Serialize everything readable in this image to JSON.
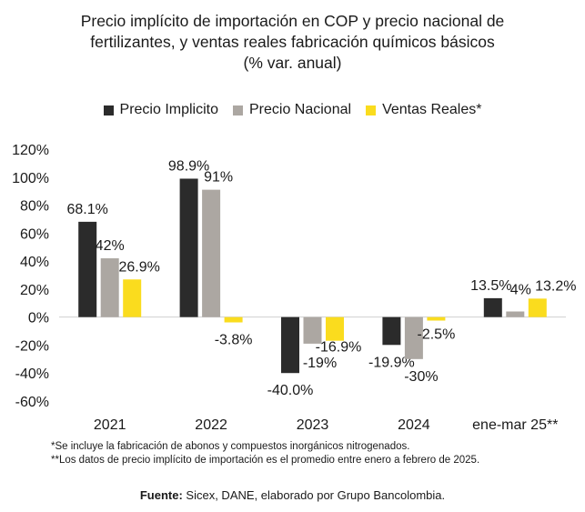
{
  "title": {
    "line1": "Precio implícito de importación en COP y precio nacional de",
    "line2": "fertilizantes, y ventas reales fabricación químicos básicos",
    "line3": "(% var. anual)"
  },
  "colors": {
    "precio_implicito": "#2b2b2b",
    "precio_nacional": "#aca7a2",
    "ventas_reales": "#fadc1e",
    "zero_line": "#d0d0d0"
  },
  "chart_data": {
    "type": "bar",
    "title": "Precio implícito de importación en COP y precio nacional de fertilizantes, y ventas reales fabricación químicos básicos (% var. anual)",
    "categories": [
      "2021",
      "2022",
      "2023",
      "2024",
      "ene-mar 25**"
    ],
    "series": [
      {
        "name": "Precio Implicito",
        "values": [
          68.1,
          98.9,
          -40.0,
          -19.9,
          13.5
        ],
        "labels": [
          "68.1%",
          "98.9%",
          "-40.0%",
          "-19.9%",
          "13.5%"
        ]
      },
      {
        "name": "Precio Nacional",
        "values": [
          42,
          91,
          -19,
          -30,
          4
        ],
        "labels": [
          "42%",
          "91%",
          "-19%",
          "-30%",
          "4%"
        ]
      },
      {
        "name": "Ventas Reales*",
        "values": [
          26.9,
          -3.8,
          -16.9,
          -2.5,
          13.2
        ],
        "labels": [
          "26.9%",
          "-3.8%",
          "-16.9%",
          "-2.5%",
          "13.2%"
        ]
      }
    ],
    "ylim": [
      -60,
      120
    ],
    "yticks": [
      120,
      100,
      80,
      60,
      40,
      20,
      0,
      -20,
      -40,
      -60
    ],
    "ytick_labels": [
      "120%",
      "100%",
      "80%",
      "60%",
      "40%",
      "20%",
      "0%",
      "-20%",
      "-40%",
      "-60%"
    ],
    "xlabel": "",
    "ylabel": "",
    "legend": "top-center",
    "grid": false
  },
  "notes": {
    "note1": "*Se incluye la fabricación de abonos y compuestos inorgánicos nitrogenados.",
    "note2": "**Los datos de precio implícito de importación es el promedio entre enero a febrero de 2025."
  },
  "source": {
    "label": "Fuente:",
    "text": " Sicex, DANE, elaborado por Grupo Bancolombia."
  }
}
